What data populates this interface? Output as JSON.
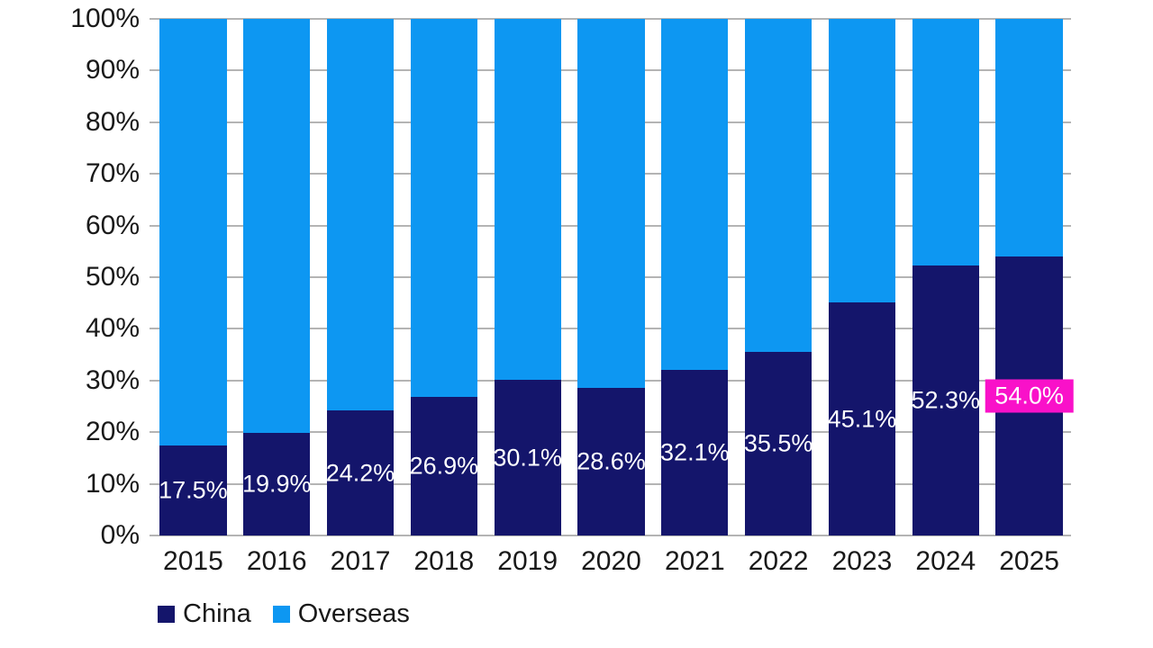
{
  "chart_data": {
    "type": "bar",
    "stacked": true,
    "orientation": "vertical",
    "title": "",
    "categories": [
      "2015",
      "2016",
      "2017",
      "2018",
      "2019",
      "2020",
      "2021",
      "2022",
      "2023",
      "2024",
      "2025"
    ],
    "series": [
      {
        "name": "China",
        "color": "#14156B",
        "values": [
          17.5,
          19.9,
          24.2,
          26.9,
          30.1,
          28.6,
          32.1,
          35.5,
          45.1,
          52.3,
          54.0
        ]
      },
      {
        "name": "Overseas",
        "color": "#0D97F2",
        "values": [
          82.5,
          80.1,
          75.8,
          73.1,
          69.9,
          71.4,
          67.9,
          64.5,
          54.9,
          47.7,
          46.0
        ]
      }
    ],
    "data_labels": [
      "17.5%",
      "19.9%",
      "24.2%",
      "26.9%",
      "30.1%",
      "28.6%",
      "32.1%",
      "35.5%",
      "45.1%",
      "52.3%",
      "54.0%"
    ],
    "data_label_color": "#FFFFFF",
    "highlight": {
      "index": 10,
      "label": "54.0%",
      "background": "#F911C9",
      "text_color": "#FFFFFF"
    },
    "y_axis": {
      "min": 0,
      "max": 100,
      "ticks": [
        "0%",
        "10%",
        "20%",
        "30%",
        "40%",
        "50%",
        "60%",
        "70%",
        "80%",
        "90%",
        "100%"
      ]
    },
    "grid": {
      "show": true,
      "color": "#B4B4B4"
    },
    "axis_text_color": "#191919",
    "background": "#FFFFFF",
    "legend": {
      "position": "bottom-left",
      "items": [
        {
          "label": "China",
          "color": "#14156B"
        },
        {
          "label": "Overseas",
          "color": "#0D97F2"
        }
      ]
    }
  }
}
